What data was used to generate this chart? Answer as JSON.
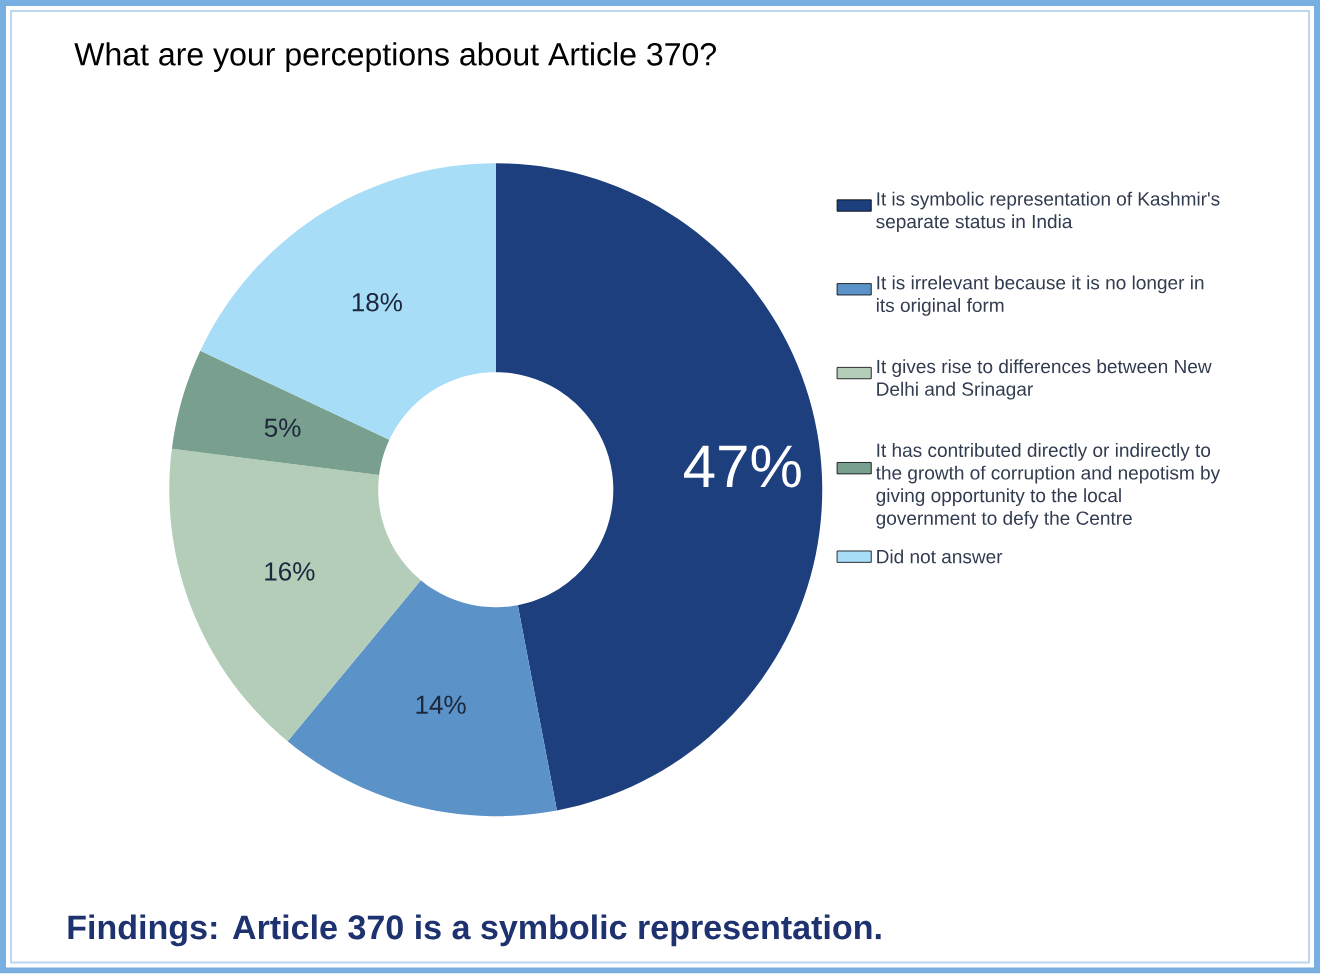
{
  "chart_data": {
    "type": "donut",
    "title": "What are your perceptions about Article 370?",
    "categories": [
      "It is symbolic representation of Kashmir's separate status in India",
      "It is irrelevant because it is no longer in its original form",
      "It gives rise to differences between New Delhi and Srinagar",
      "It has contributed directly or indirectly to the growth of corruption and nepotism by giving opportunity to the local government to defy the Centre",
      "Did not answer"
    ],
    "values": [
      47,
      14,
      16,
      5,
      18
    ],
    "colors": [
      "#1d3f7e",
      "#5b93c9",
      "#b3cdb9",
      "#79a08f",
      "#a7ddf7"
    ],
    "value_labels": [
      "47%",
      "14%",
      "16%",
      "5%",
      "18%"
    ],
    "legend": "right",
    "annotations": [
      "Findings: Article 370 is a symbolic representation."
    ]
  }
}
